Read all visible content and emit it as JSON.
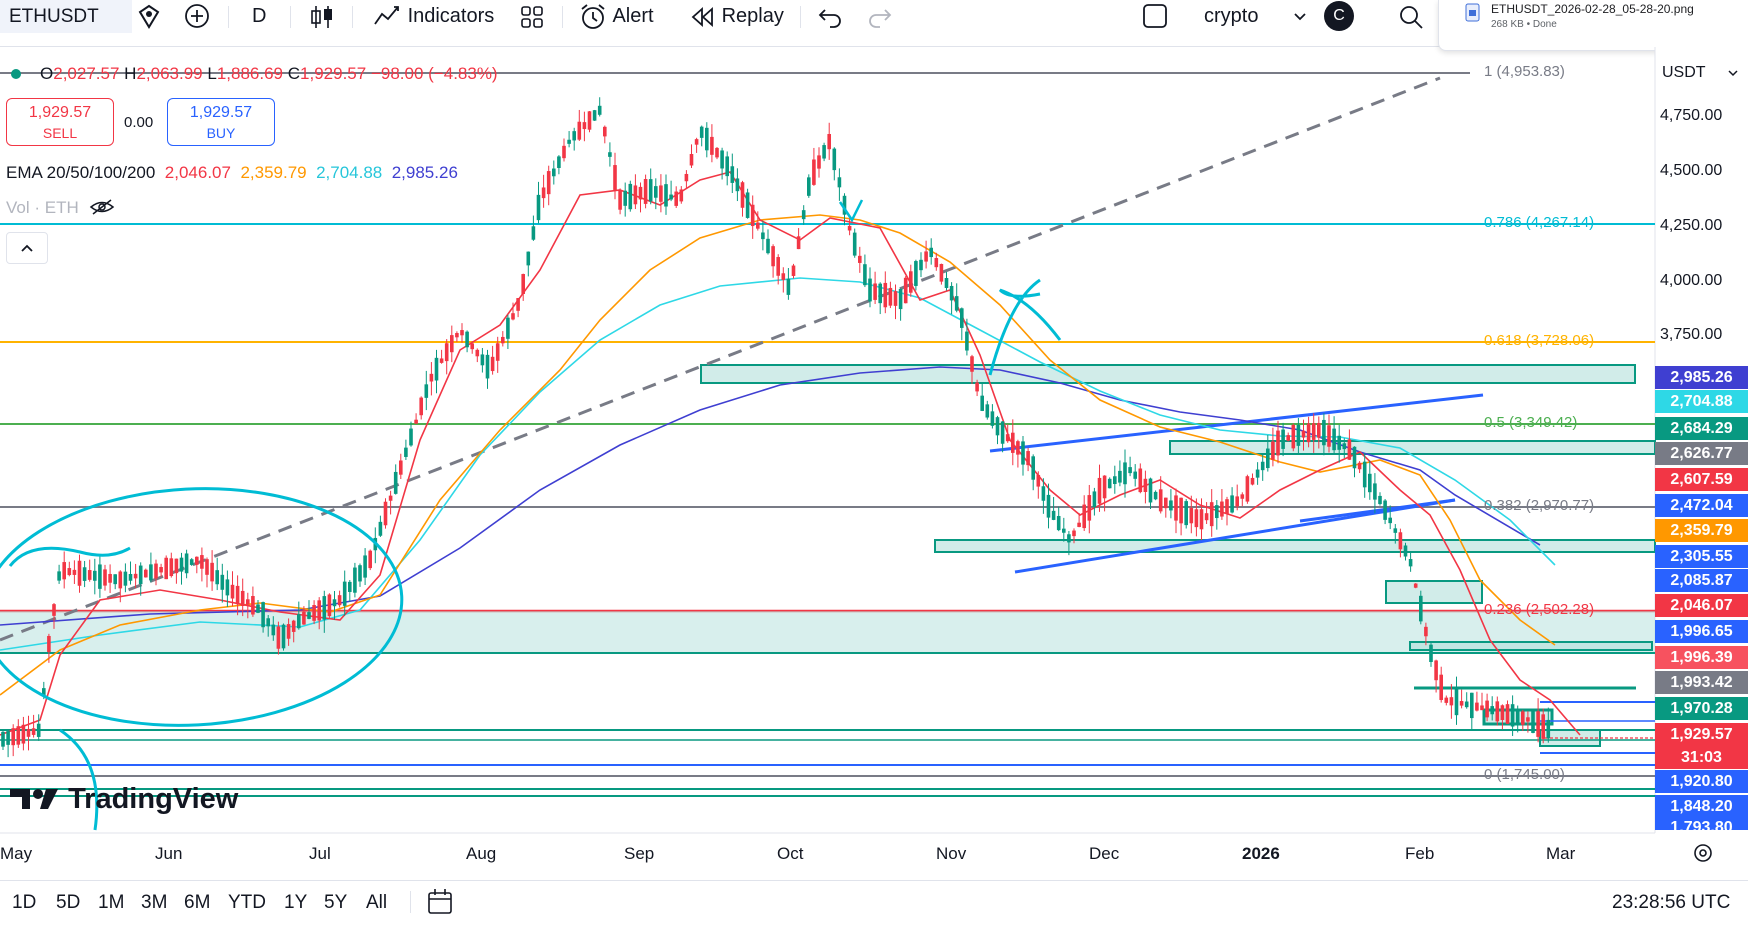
{
  "toolbar": {
    "symbol": "ETHUSDT",
    "interval": "D",
    "indicators": "Indicators",
    "alert": "Alert",
    "replay": "Replay",
    "layout_name": "crypto",
    "avatar": "C"
  },
  "download": {
    "filename": "ETHUSDT_2026-02-28_05-28-20.png",
    "meta": "268 KB • Done"
  },
  "ohlc": {
    "o_label": "O",
    "o": "2,027.57",
    "h_label": "H",
    "h": "2,063.99",
    "l_label": "L",
    "l": "1,886.69",
    "c_label": "C",
    "c": "1,929.57",
    "change": "−98.00 (−4.83%)"
  },
  "trade": {
    "sell_price": "1,929.57",
    "sell_label": "SELL",
    "spread": "0.00",
    "buy_price": "1,929.57",
    "buy_label": "BUY"
  },
  "ema": {
    "label": "EMA 20/50/100/200",
    "v20": "2,046.07",
    "v50": "2,359.79",
    "v100": "2,704.88",
    "v200": "2,985.26",
    "c20": "#f23645",
    "c50": "#ff9800",
    "c100": "#2ed8e6",
    "c200": "#3f3fd1"
  },
  "volume_label": "Vol · ETH",
  "currency": "USDT",
  "y_ticks": [
    "4,750.00",
    "4,500.00",
    "4,250.00",
    "4,000.00",
    "3,750.00"
  ],
  "x_ticks": [
    "May",
    "Jun",
    "Jul",
    "Aug",
    "Sep",
    "Oct",
    "Nov",
    "Dec",
    "2026",
    "Feb",
    "Mar"
  ],
  "fib": [
    {
      "label": "1 (4,953.83)",
      "color": "#787b86"
    },
    {
      "label": "0.786 (4,267.14)",
      "color": "#00bcd4"
    },
    {
      "label": "0.618 (3,728.06)",
      "color": "#ffb300"
    },
    {
      "label": "0.5 (3,349.42)",
      "color": "#4caf50"
    },
    {
      "label": "0.382 (2,970.77)",
      "color": "#787b86"
    },
    {
      "label": "0.236 (2,502.28)",
      "color": "#f23645"
    },
    {
      "label": "0 (1,745.00)",
      "color": "#787b86"
    }
  ],
  "price_labels": [
    {
      "value": "2,985.26",
      "color": "#3f3fd1"
    },
    {
      "value": "2,704.88",
      "color": "#2ed8e6"
    },
    {
      "value": "2,684.29",
      "color": "#089981"
    },
    {
      "value": "2,626.77",
      "color": "#787b86"
    },
    {
      "value": "2,607.59",
      "color": "#f23645"
    },
    {
      "value": "2,472.04",
      "color": "#2962ff"
    },
    {
      "value": "2,359.79",
      "color": "#ff9800"
    },
    {
      "value": "2,305.55",
      "color": "#2962ff"
    },
    {
      "value": "2,085.87",
      "color": "#2962ff"
    },
    {
      "value": "2,046.07",
      "color": "#f23645"
    },
    {
      "value": "1,996.65",
      "color": "#2962ff"
    },
    {
      "value": "1,996.39",
      "color": "#f7525f"
    },
    {
      "value": "1,993.42",
      "color": "#787b86"
    },
    {
      "value": "1,970.28",
      "color": "#089981"
    },
    {
      "value": "1,929.57",
      "color": "#f23645"
    },
    {
      "value": "31:03",
      "color": "#f23645"
    },
    {
      "value": "1,920.80",
      "color": "#2962ff"
    },
    {
      "value": "1,848.20",
      "color": "#2962ff"
    },
    {
      "value": "1,793.80",
      "color": "#2962ff"
    }
  ],
  "ranges": [
    "1D",
    "5D",
    "1M",
    "3M",
    "6M",
    "YTD",
    "1Y",
    "5Y",
    "All"
  ],
  "clock": "23:28:56 UTC",
  "watermark": "TradingView"
}
